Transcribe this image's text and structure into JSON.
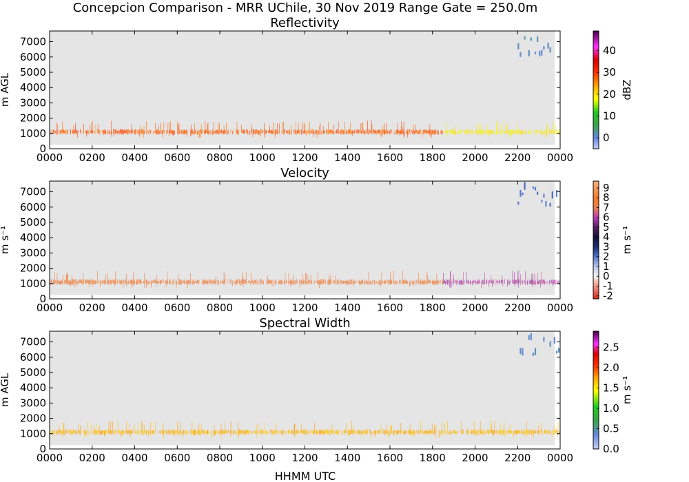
{
  "figure": {
    "title": "Concepcion Comparison - MRR UChile, 30 Nov 2019 Range Gate = 250.0m",
    "xlabel": "HHMM UTC"
  },
  "chart_data": [
    {
      "type": "heatmap",
      "title": "Reflectivity",
      "ylabel": "m AGL",
      "colorbar_label": "dBZ",
      "xlim": [
        0,
        1440
      ],
      "ylim": [
        0,
        7700
      ],
      "grid": false,
      "x_tick_values": [
        0,
        120,
        240,
        360,
        480,
        600,
        720,
        840,
        960,
        1080,
        1200,
        1320,
        1440
      ],
      "x_tick_labels": [
        "0000",
        "0200",
        "0400",
        "0600",
        "0800",
        "1000",
        "1200",
        "1400",
        "1600",
        "1800",
        "2000",
        "2200",
        "0000"
      ],
      "y_tick_values": [
        0,
        1000,
        2000,
        3000,
        4000,
        5000,
        6000,
        7000
      ],
      "y_tick_labels": [
        "0",
        "1000",
        "2000",
        "3000",
        "4000",
        "5000",
        "6000",
        "7000"
      ],
      "colorbar_range": [
        -5,
        49
      ],
      "colorbar_ticks": [
        0,
        10,
        20,
        30,
        40
      ],
      "colorbar_tick_labels": [
        "0",
        "10",
        "20",
        "30",
        "40"
      ],
      "colorbar_stops": [
        {
          "v": -5,
          "c": "#c7d0f5"
        },
        {
          "v": 0,
          "c": "#6688e0"
        },
        {
          "v": 6,
          "c": "#3aa34a"
        },
        {
          "v": 12,
          "c": "#1fcb1f"
        },
        {
          "v": 18,
          "c": "#ffff00"
        },
        {
          "v": 24,
          "c": "#ffa500"
        },
        {
          "v": 30,
          "c": "#ff3300"
        },
        {
          "v": 36,
          "c": "#d80000"
        },
        {
          "v": 42,
          "c": "#ff30ff"
        },
        {
          "v": 49,
          "c": "#4a004a"
        }
      ],
      "echo_layers": [
        {
          "name": "low-level layer",
          "x_range": [
            0,
            1110
          ],
          "y_range": [
            900,
            1300
          ],
          "value": 28
        },
        {
          "name": "low-level layer",
          "x_range": [
            1110,
            1440
          ],
          "y_range": [
            900,
            1300
          ],
          "value": 19
        },
        {
          "name": "upper-level echo",
          "x_range": [
            1320,
            1440
          ],
          "y_range": [
            6000,
            7300
          ],
          "value": 1
        }
      ]
    },
    {
      "type": "heatmap",
      "title": "Velocity",
      "ylabel": "m s⁻¹",
      "colorbar_label": "m s⁻¹",
      "xlim": [
        0,
        1440
      ],
      "ylim": [
        0,
        7700
      ],
      "grid": false,
      "x_tick_values": [
        0,
        120,
        240,
        360,
        480,
        600,
        720,
        840,
        960,
        1080,
        1200,
        1320,
        1440
      ],
      "x_tick_labels": [
        "0000",
        "0200",
        "0400",
        "0600",
        "0800",
        "1000",
        "1200",
        "1400",
        "1600",
        "1800",
        "2000",
        "2200",
        "0000"
      ],
      "y_tick_values": [
        0,
        1000,
        2000,
        3000,
        4000,
        5000,
        6000,
        7000
      ],
      "y_tick_labels": [
        "0",
        "1000",
        "2000",
        "3000",
        "4000",
        "5000",
        "6000",
        "7000"
      ],
      "colorbar_range": [
        -2.3,
        9.7
      ],
      "colorbar_ticks": [
        -2,
        -1,
        0,
        1,
        2,
        3,
        4,
        5,
        6,
        7,
        8,
        9
      ],
      "colorbar_tick_labels": [
        "-2",
        "-1",
        "0",
        "1",
        "2",
        "3",
        "4",
        "5",
        "6",
        "7",
        "8",
        "9"
      ],
      "colorbar_stops": [
        {
          "v": -2.3,
          "c": "#d62718"
        },
        {
          "v": -0.6,
          "c": "#f4b3a4"
        },
        {
          "v": 0,
          "c": "#f4f4f4"
        },
        {
          "v": 1,
          "c": "#b9c6e8"
        },
        {
          "v": 2,
          "c": "#5577cc"
        },
        {
          "v": 3,
          "c": "#1e2e78"
        },
        {
          "v": 4,
          "c": "#111133"
        },
        {
          "v": 5,
          "c": "#55205e"
        },
        {
          "v": 6,
          "c": "#b73ab7"
        },
        {
          "v": 7,
          "c": "#e8804a"
        },
        {
          "v": 8,
          "c": "#f47a2a"
        },
        {
          "v": 9.7,
          "c": "#f9b07a"
        }
      ],
      "echo_layers": [
        {
          "name": "low-level layer",
          "x_range": [
            0,
            1110
          ],
          "y_range": [
            900,
            1300
          ],
          "value": 7.5
        },
        {
          "name": "low-level layer",
          "x_range": [
            1110,
            1440
          ],
          "y_range": [
            900,
            1300
          ],
          "value": 6
        },
        {
          "name": "upper-level echo",
          "x_range": [
            1320,
            1440
          ],
          "y_range": [
            6000,
            7300
          ],
          "value": 2
        }
      ]
    },
    {
      "type": "heatmap",
      "title": "Spectral Width",
      "ylabel": "m AGL",
      "colorbar_label": "m s⁻¹",
      "xlim": [
        0,
        1440
      ],
      "ylim": [
        0,
        7700
      ],
      "grid": false,
      "x_tick_values": [
        0,
        120,
        240,
        360,
        480,
        600,
        720,
        840,
        960,
        1080,
        1200,
        1320,
        1440
      ],
      "x_tick_labels": [
        "0000",
        "0200",
        "0400",
        "0600",
        "0800",
        "1000",
        "1200",
        "1400",
        "1600",
        "1800",
        "2000",
        "2200",
        "0000"
      ],
      "y_tick_values": [
        0,
        1000,
        2000,
        3000,
        4000,
        5000,
        6000,
        7000
      ],
      "y_tick_labels": [
        "0",
        "1000",
        "2000",
        "3000",
        "4000",
        "5000",
        "6000",
        "7000"
      ],
      "colorbar_range": [
        0,
        2.9
      ],
      "colorbar_ticks": [
        0,
        0.5,
        1,
        1.5,
        2,
        2.5
      ],
      "colorbar_tick_labels": [
        "0.0",
        "0.5",
        "1.0",
        "1.5",
        "2.0",
        "2.5"
      ],
      "colorbar_stops": [
        {
          "v": 0,
          "c": "#c7d0f5"
        },
        {
          "v": 0.35,
          "c": "#6688e0"
        },
        {
          "v": 0.7,
          "c": "#3aa34a"
        },
        {
          "v": 1.05,
          "c": "#1fcb1f"
        },
        {
          "v": 1.45,
          "c": "#ffff00"
        },
        {
          "v": 1.75,
          "c": "#ffa500"
        },
        {
          "v": 2.05,
          "c": "#ff3300"
        },
        {
          "v": 2.35,
          "c": "#d80000"
        },
        {
          "v": 2.6,
          "c": "#ff30ff"
        },
        {
          "v": 2.9,
          "c": "#4a004a"
        }
      ],
      "echo_layers": [
        {
          "name": "low-level layer",
          "x_range": [
            0,
            1440
          ],
          "y_range": [
            900,
            1300
          ],
          "value": 1.7
        },
        {
          "name": "upper-level echo",
          "x_range": [
            1320,
            1440
          ],
          "y_range": [
            6000,
            7300
          ],
          "value": 0.4
        }
      ]
    }
  ]
}
